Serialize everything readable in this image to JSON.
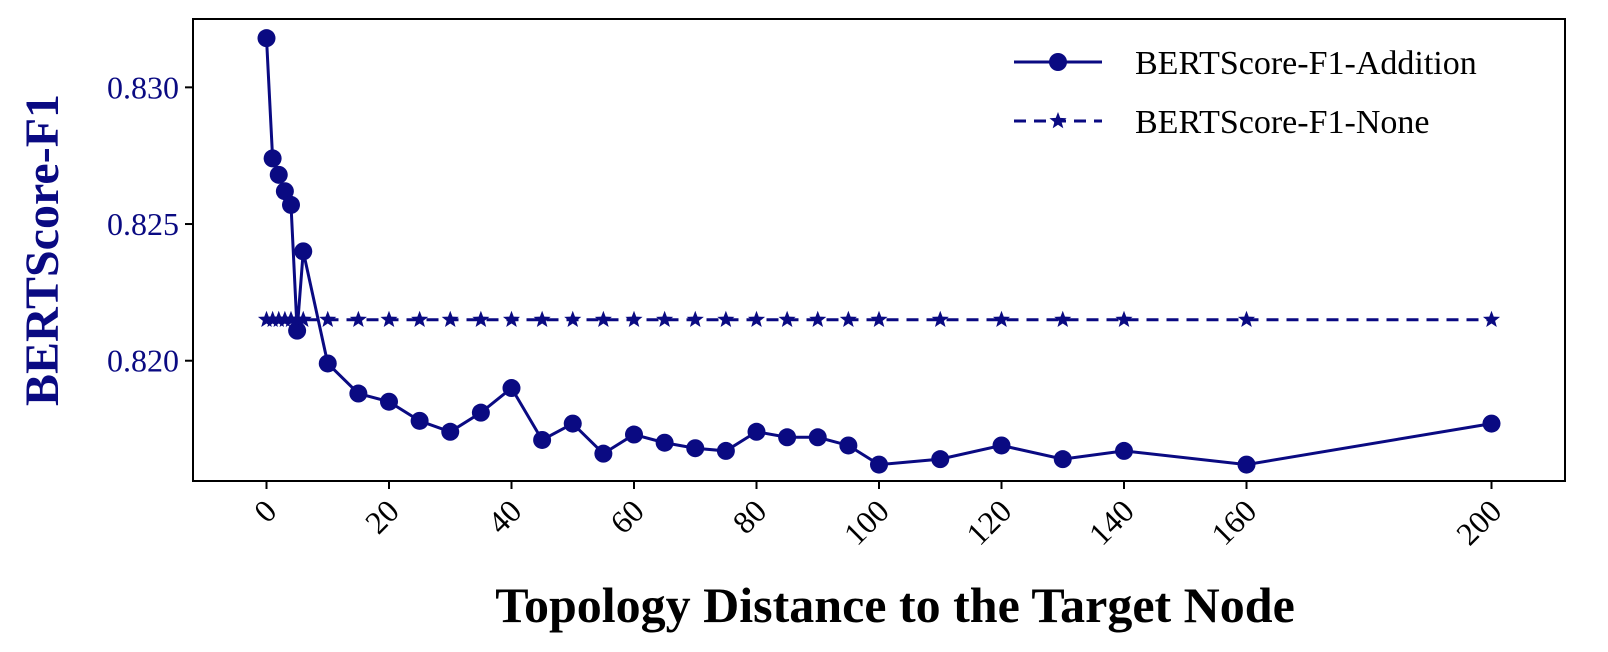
{
  "chart_data": {
    "type": "line",
    "title": "",
    "xlabel": "Topology Distance to the Target Node",
    "ylabel": "BERTScore-F1",
    "xlim": [
      -12,
      212
    ],
    "ylim": [
      0.8156,
      0.8325
    ],
    "xticks": [
      0,
      20,
      40,
      60,
      80,
      100,
      120,
      140,
      160,
      200
    ],
    "yticks": [
      0.82,
      0.825,
      0.83
    ],
    "ytick_labels": [
      "0.820",
      "0.825",
      "0.830"
    ],
    "grid": false,
    "legend_position": "top-right",
    "series": [
      {
        "name": "BERTScore-F1-Addition",
        "style": "solid",
        "marker": "circle",
        "color": "#0a0a82",
        "x": [
          0,
          1,
          2,
          3,
          4,
          5,
          6,
          10,
          15,
          20,
          25,
          30,
          35,
          40,
          45,
          50,
          55,
          60,
          65,
          70,
          75,
          80,
          85,
          90,
          95,
          100,
          110,
          120,
          130,
          140,
          160,
          200
        ],
        "y": [
          0.8318,
          0.8274,
          0.8268,
          0.8262,
          0.8257,
          0.8211,
          0.824,
          0.8199,
          0.8188,
          0.8185,
          0.8178,
          0.8174,
          0.8181,
          0.819,
          0.8171,
          0.8177,
          0.8166,
          0.8173,
          0.817,
          0.8168,
          0.8167,
          0.8174,
          0.8172,
          0.8172,
          0.8169,
          0.8162,
          0.8164,
          0.8169,
          0.8164,
          0.8167,
          0.8162,
          0.8177
        ]
      },
      {
        "name": "BERTScore-F1-None",
        "style": "dashed",
        "marker": "star",
        "color": "#0a0a82",
        "x": [
          0,
          1,
          2,
          3,
          4,
          5,
          6,
          10,
          15,
          20,
          25,
          30,
          35,
          40,
          45,
          50,
          55,
          60,
          65,
          70,
          75,
          80,
          85,
          90,
          95,
          100,
          110,
          120,
          130,
          140,
          160,
          200
        ],
        "y": [
          0.8215,
          0.8215,
          0.8215,
          0.8215,
          0.8215,
          0.8215,
          0.8215,
          0.8215,
          0.8215,
          0.8215,
          0.8215,
          0.8215,
          0.8215,
          0.8215,
          0.8215,
          0.8215,
          0.8215,
          0.8215,
          0.8215,
          0.8215,
          0.8215,
          0.8215,
          0.8215,
          0.8215,
          0.8215,
          0.8215,
          0.8215,
          0.8215,
          0.8215,
          0.8215,
          0.8215,
          0.8215
        ]
      }
    ]
  }
}
